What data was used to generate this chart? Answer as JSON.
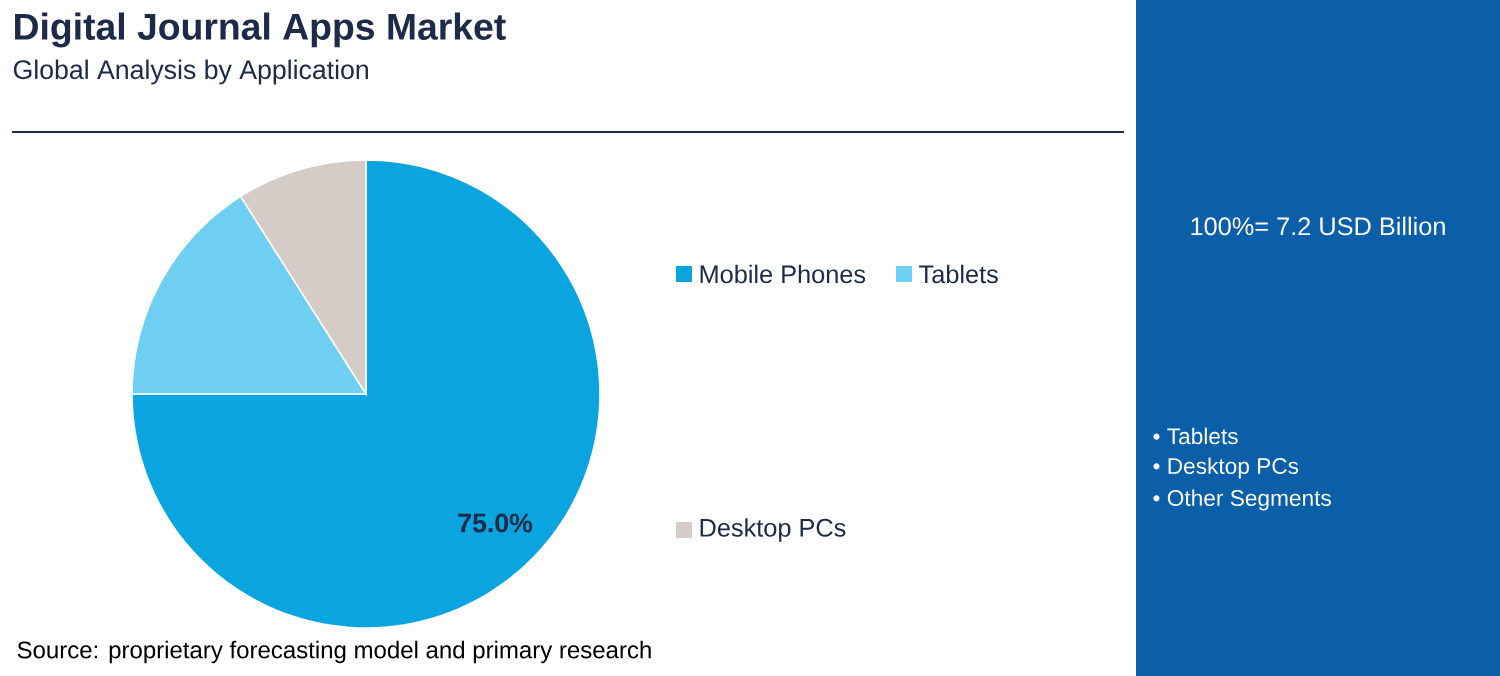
{
  "chart_data": {
    "type": "pie",
    "title": "Digital Journal Apps Market",
    "subtitle": "Global Analysis by Application",
    "categories": [
      "Mobile Phones",
      "Tablets",
      "Desktop PCs"
    ],
    "values": [
      75,
      16,
      9
    ],
    "colors": [
      "#0aa5de",
      "#6fcff2",
      "#d6ccc7"
    ],
    "value_labels": [
      "75.0%",
      null,
      null
    ],
    "legend": "right",
    "annotations": [
      "100%= 7.2 USD Billion",
      "• Tablets",
      "• Desktop PCs",
      "• Other Segments",
      "Source: proprietary forecasting model and primary research"
    ]
  }
}
